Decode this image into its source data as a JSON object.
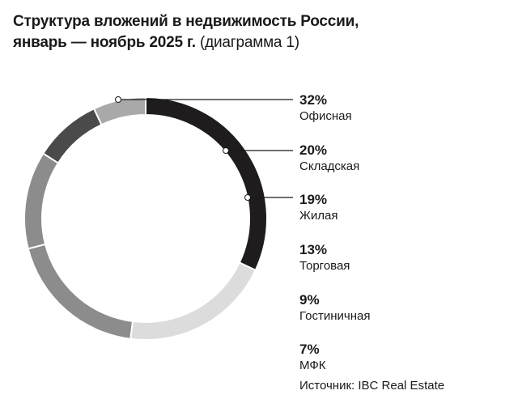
{
  "title": {
    "line1": "Структура вложений в недвижимость России,",
    "line2_bold": "январь — ноябрь 2025 г.",
    "line2_light": "(диаграмма 1)"
  },
  "source": "Источник: IBC Real Estate",
  "chart_data": {
    "type": "pie",
    "donut": true,
    "categories": [
      "Офисная",
      "Складская",
      "Жилая",
      "Торговая",
      "Гостиничная",
      "МФК"
    ],
    "values": [
      32,
      20,
      19,
      13,
      9,
      7
    ],
    "labels": [
      "32%",
      "20%",
      "19%",
      "13%",
      "9%",
      "7%"
    ],
    "colors": [
      "#1e1c1d",
      "#dcdcdc",
      "#8c8c8c",
      "#8c8c8c",
      "#4a4a4a",
      "#a9a9a9"
    ],
    "legend_placement": "right"
  }
}
